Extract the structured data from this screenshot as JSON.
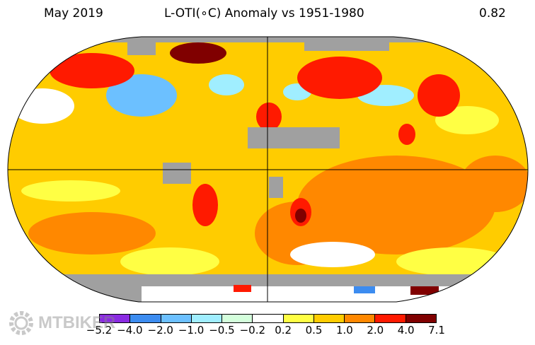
{
  "header": {
    "left": "May 2019",
    "center": "L-OTI(∘C) Anomaly vs 1951-1980",
    "right": "0.82"
  },
  "legend": {
    "ticks": [
      "−5.2",
      "−4.0",
      "−2.0",
      "−1.0",
      "−0.5",
      "−0.2",
      "0.2",
      "0.5",
      "1.0",
      "2.0",
      "4.0",
      "7.1"
    ],
    "colors": [
      "#8a2be2",
      "#3c8cf0",
      "#6cc0ff",
      "#a0eeff",
      "#d4ffdc",
      "#ffffff",
      "#ffff44",
      "#ffcc00",
      "#ff8800",
      "#ff1a00",
      "#800000"
    ]
  },
  "missing_color": "#a0a0a0",
  "watermark": "MTBIKER"
}
